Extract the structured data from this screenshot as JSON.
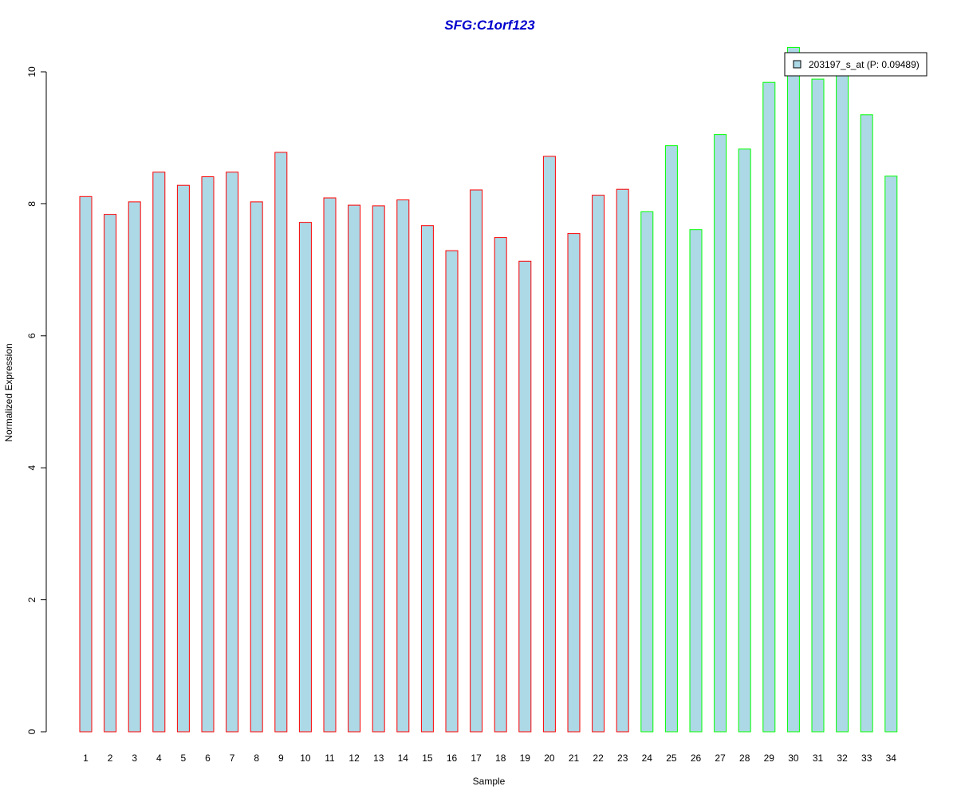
{
  "chart_data": {
    "type": "bar",
    "title": "SFG:C1orf123",
    "xlabel": "Sample",
    "ylabel": "Normalized Expression",
    "categories": [
      "1",
      "2",
      "3",
      "4",
      "5",
      "6",
      "7",
      "8",
      "9",
      "10",
      "11",
      "12",
      "13",
      "14",
      "15",
      "16",
      "17",
      "18",
      "19",
      "20",
      "21",
      "22",
      "23",
      "24",
      "25",
      "26",
      "27",
      "28",
      "29",
      "30",
      "31",
      "32",
      "33",
      "34"
    ],
    "series": [
      {
        "name": "203197_s_at (P: 0.09489)",
        "values": [
          8.11,
          7.84,
          8.03,
          8.48,
          8.28,
          8.41,
          8.48,
          8.03,
          8.78,
          7.72,
          8.09,
          7.98,
          7.97,
          8.06,
          7.67,
          7.29,
          8.21,
          7.49,
          7.13,
          8.72,
          7.55,
          8.13,
          8.22,
          7.88,
          8.88,
          7.61,
          9.05,
          8.83,
          9.84,
          10.37,
          9.89,
          9.97,
          9.35,
          8.42
        ]
      }
    ],
    "ylim": [
      0,
      10
    ],
    "yticks": [
      "0",
      "2",
      "4",
      "6",
      "8",
      "10"
    ],
    "legend": {
      "label": "203197_s_at (P: 0.09489)",
      "placement": "top-right"
    },
    "grid": false,
    "colors": {
      "bar_fill": "#add8e6",
      "group1_border": "#ff0000",
      "group2_border": "#00ff00",
      "title": "#0000cd"
    },
    "group_borders": [
      "group1",
      "group1",
      "group1",
      "group1",
      "group1",
      "group1",
      "group1",
      "group1",
      "group1",
      "group1",
      "group1",
      "group1",
      "group1",
      "group1",
      "group1",
      "group1",
      "group1",
      "group1",
      "group1",
      "group1",
      "group1",
      "group1",
      "group1",
      "group2",
      "group2",
      "group2",
      "group2",
      "group2",
      "group2",
      "group2",
      "group2",
      "group2",
      "group2",
      "group2"
    ]
  }
}
